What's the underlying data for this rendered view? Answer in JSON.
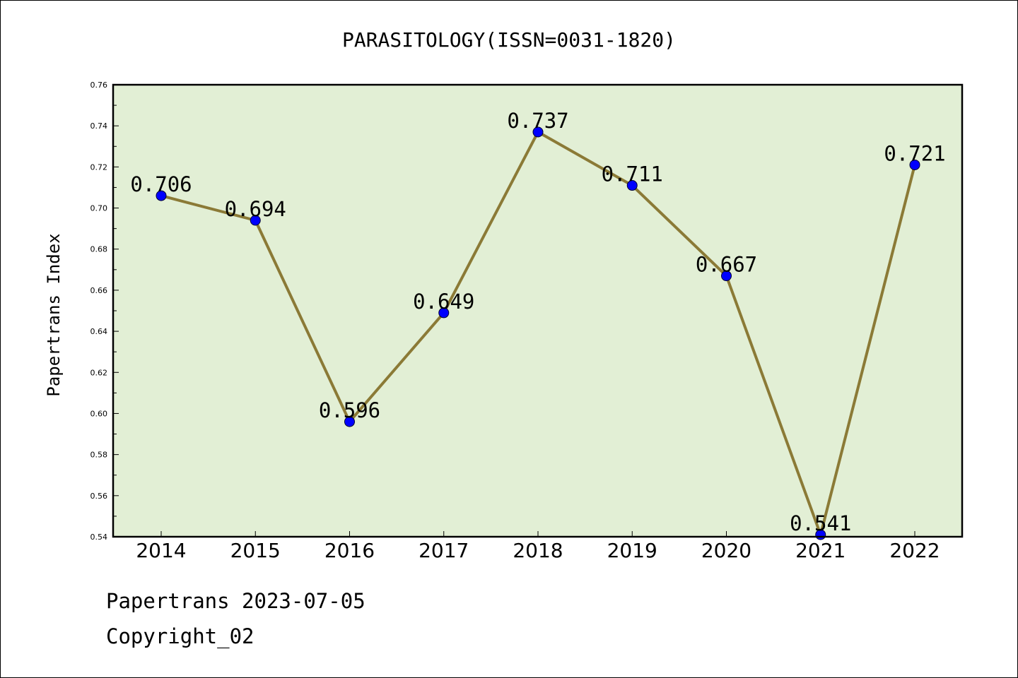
{
  "chart_data": {
    "type": "line",
    "title": "PARASITOLOGY(ISSN=0031-1820)",
    "xlabel": "",
    "ylabel": "Papertrans Index",
    "categories": [
      "2014",
      "2015",
      "2016",
      "2017",
      "2018",
      "2019",
      "2020",
      "2021",
      "2022"
    ],
    "values": [
      0.706,
      0.694,
      0.596,
      0.649,
      0.737,
      0.711,
      0.667,
      0.541,
      0.721
    ],
    "data_labels": [
      "0.706",
      "0.694",
      "0.596",
      "0.649",
      "0.737",
      "0.711",
      "0.667",
      "0.541",
      "0.721"
    ],
    "ylim": [
      0.54,
      0.76
    ],
    "yticks": [
      "0.54",
      "0.56",
      "0.58",
      "0.60",
      "0.62",
      "0.64",
      "0.66",
      "0.68",
      "0.70",
      "0.72",
      "0.74",
      "0.76"
    ],
    "grid": false,
    "legend": "none",
    "colors": {
      "plot_background": "#e2efd5",
      "line": "#8b7a36",
      "marker": "#0000ff"
    }
  },
  "footer": {
    "date_line": "Papertrans 2023-07-05",
    "copyright_line": "Copyright_02"
  }
}
